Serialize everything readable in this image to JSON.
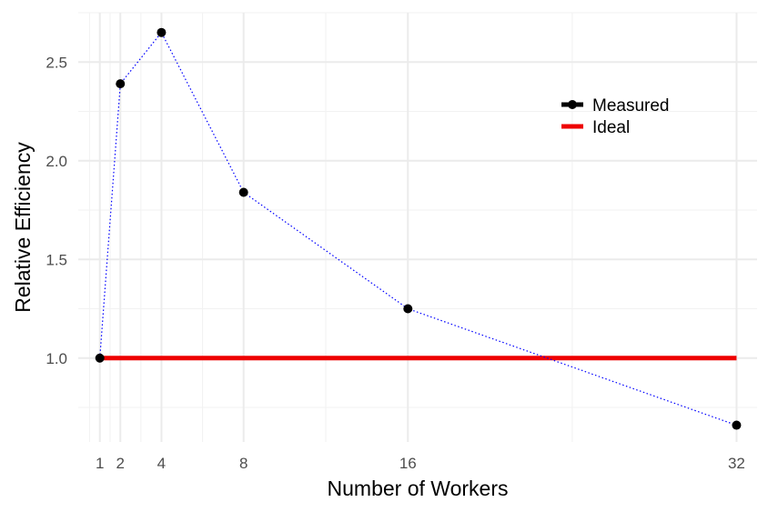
{
  "chart_data": {
    "type": "line",
    "title": "",
    "xlabel": "Number of Workers",
    "ylabel": "Relative Efficiency",
    "x_ticks": [
      1,
      2,
      4,
      8,
      16,
      32
    ],
    "y_ticks": [
      1.0,
      1.5,
      2.0,
      2.5
    ],
    "y_tick_labels": [
      "1.0",
      "1.5",
      "2.0",
      "2.5"
    ],
    "xlim": [
      -0.05,
      33.0
    ],
    "ylim": [
      0.575,
      2.75
    ],
    "grid": true,
    "legend_position": "top-right",
    "series": [
      {
        "name": "Measured",
        "style": "dotted line with points",
        "line_color": "#0000ff",
        "point_color": "#000000",
        "x": [
          1,
          2,
          4,
          8,
          16,
          32
        ],
        "y": [
          1.0,
          2.39,
          2.65,
          1.84,
          1.25,
          0.66
        ]
      },
      {
        "name": "Ideal",
        "style": "solid line",
        "line_color": "#ee0000",
        "x": [
          1,
          32
        ],
        "y": [
          1.0,
          1.0
        ]
      }
    ]
  }
}
